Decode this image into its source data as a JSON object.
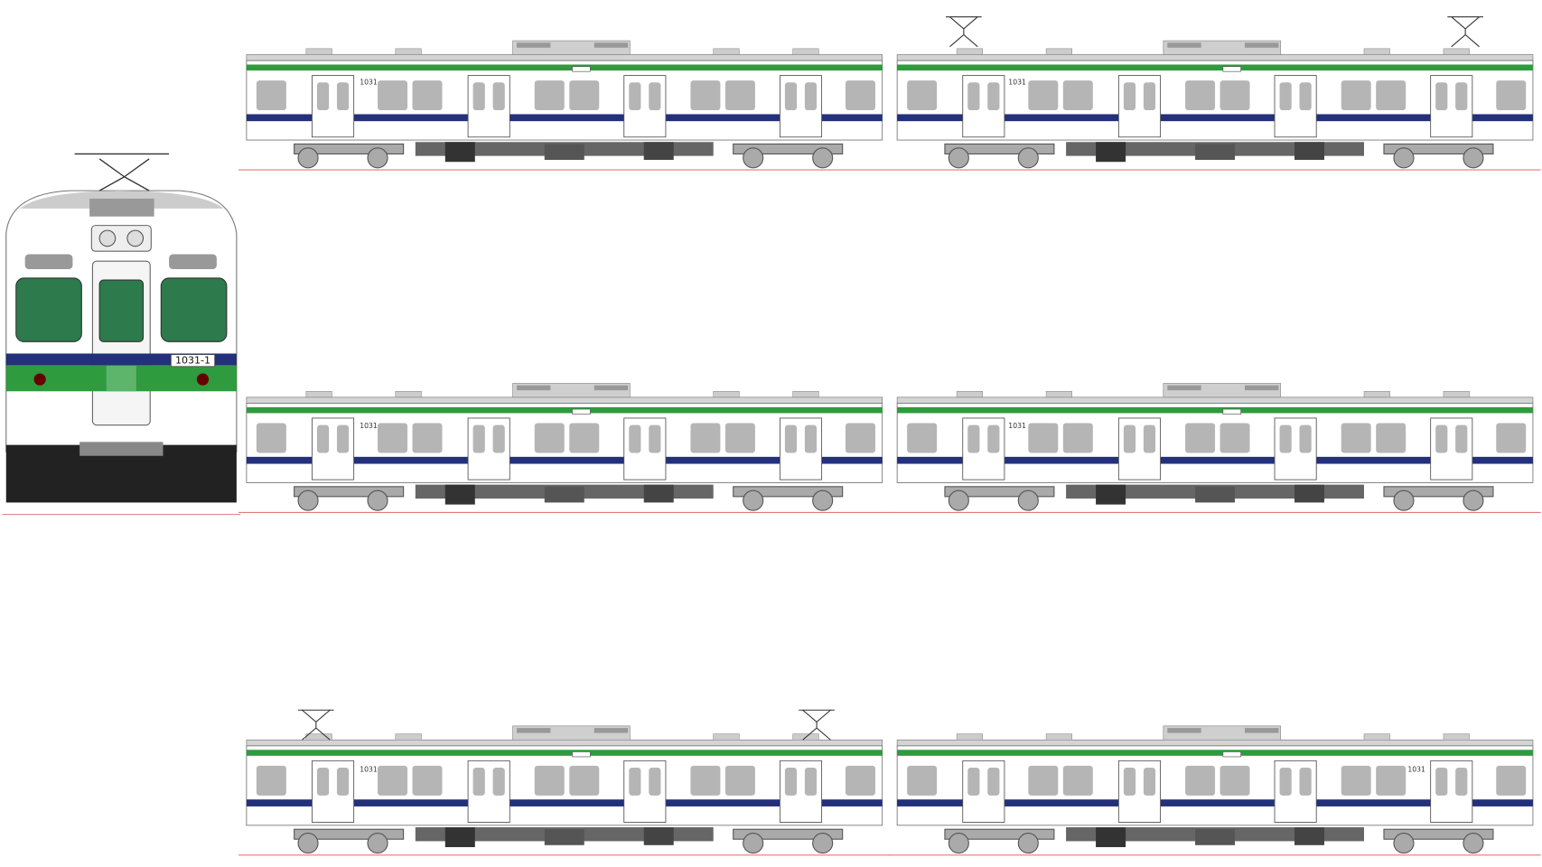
{
  "front": {
    "number": "1031-1"
  },
  "cars": [
    {
      "number": "1031"
    },
    {
      "number": "1031"
    },
    {
      "number": "1031"
    },
    {
      "number": "1031"
    },
    {
      "number": "1031"
    },
    {
      "number": "1031"
    }
  ]
}
